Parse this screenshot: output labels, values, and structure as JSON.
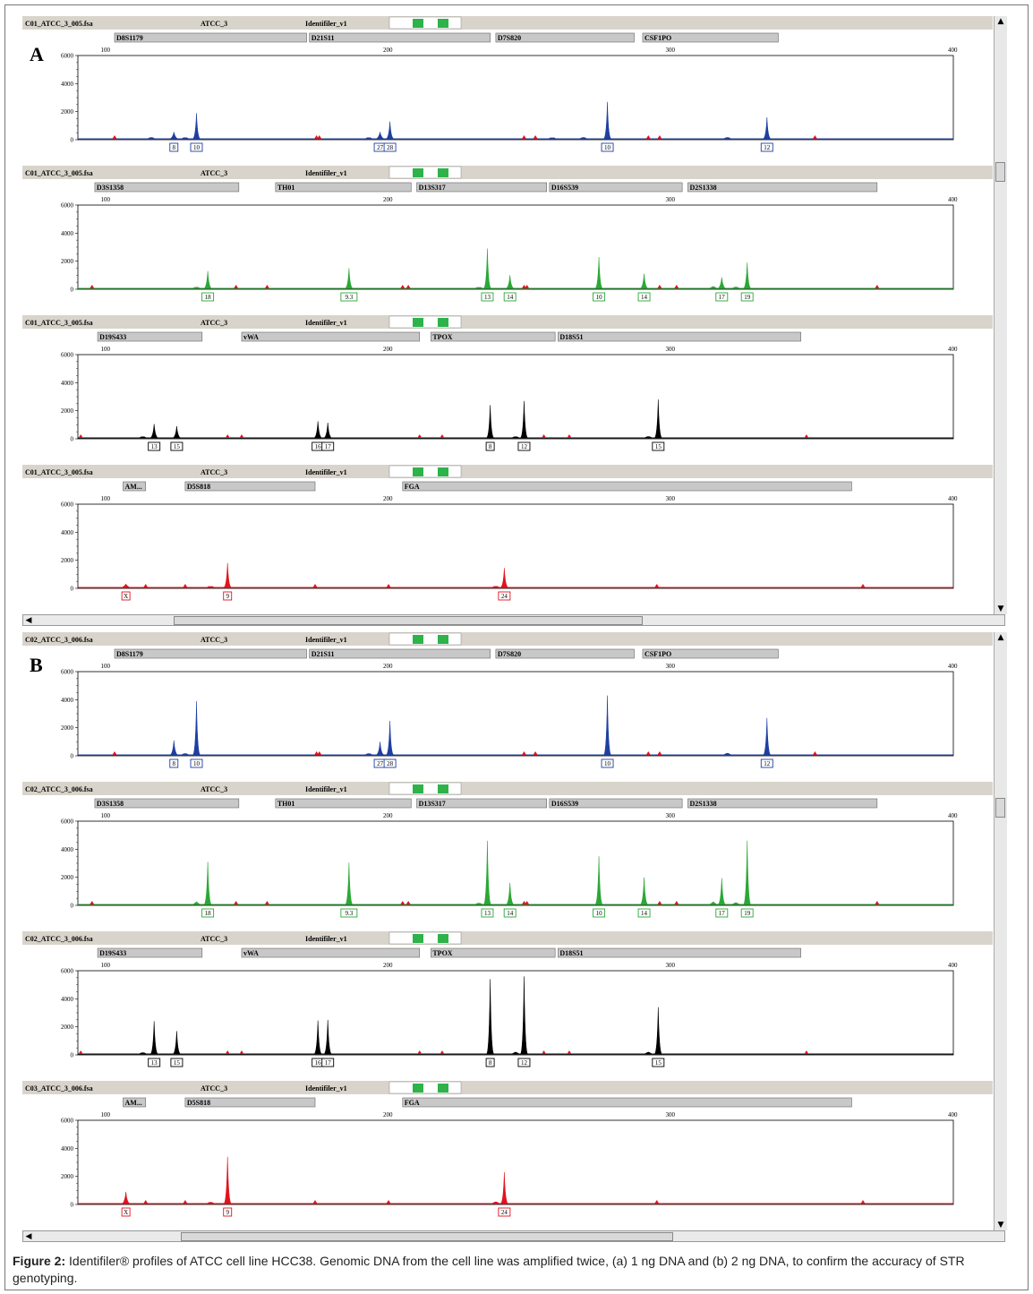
{
  "figure": {
    "caption_label": "Figure 2:",
    "caption_text": "Identifiler® profiles of ATCC cell line HCC38. Genomic DNA from the cell line was amplified twice, (a) 1 ng DNA and (b) 2 ng DNA, to confirm the accuracy of STR genotyping."
  },
  "colors": {
    "blue": "#1f3fa0",
    "green": "#2aa835",
    "black": "#000000",
    "red": "#e0141e",
    "header_bg": "#d9d4cb",
    "marker_bg": "#c8c8c8",
    "swatch": "#2db34a"
  },
  "chart_data": [
    {
      "panel": "A",
      "type": "line",
      "x_ticks": [
        100,
        200,
        300,
        400
      ],
      "x_range": [
        90,
        400
      ],
      "channels": [
        {
          "file": "C01_ATCC_3_005.fsa",
          "sample": "ATCC_3",
          "panel_name": "Identifiler_v1",
          "color": "blue",
          "y_ticks": [
            0,
            2000,
            4000,
            6000
          ],
          "ylim": [
            0,
            6000
          ],
          "markers": [
            {
              "name": "D8S1179",
              "start": 103,
              "end": 171
            },
            {
              "name": "D21S11",
              "start": 172,
              "end": 236
            },
            {
              "name": "D7S820",
              "start": 238,
              "end": 287
            },
            {
              "name": "CSF1PO",
              "start": 290,
              "end": 338
            }
          ],
          "peaks": [
            {
              "x": 124,
              "h": 550,
              "label": "8"
            },
            {
              "x": 132,
              "h": 1900,
              "label": "10"
            },
            {
              "x": 197,
              "h": 550,
              "label": "27"
            },
            {
              "x": 200.5,
              "h": 1300,
              "label": "28"
            },
            {
              "x": 277.5,
              "h": 2700,
              "label": "10"
            },
            {
              "x": 334,
              "h": 1600,
              "label": "12"
            },
            {
              "x": 116,
              "h": 150
            },
            {
              "x": 128,
              "h": 120
            },
            {
              "x": 193,
              "h": 120
            },
            {
              "x": 258,
              "h": 100
            },
            {
              "x": 269,
              "h": 150
            },
            {
              "x": 320,
              "h": 150
            }
          ],
          "off_ladder": [
            103,
            174.5,
            175.5,
            248,
            252,
            292,
            296,
            351
          ]
        },
        {
          "file": "C01_ATCC_3_005.fsa",
          "sample": "ATCC_3",
          "panel_name": "Identifiler_v1",
          "color": "green",
          "y_ticks": [
            0,
            2000,
            4000,
            6000
          ],
          "ylim": [
            0,
            6000
          ],
          "markers": [
            {
              "name": "D3S1358",
              "start": 96,
              "end": 147
            },
            {
              "name": "TH01",
              "start": 160,
              "end": 208
            },
            {
              "name": "D13S317",
              "start": 210,
              "end": 256
            },
            {
              "name": "D16S539",
              "start": 257,
              "end": 304
            },
            {
              "name": "D2S1338",
              "start": 306,
              "end": 373
            }
          ],
          "peaks": [
            {
              "x": 136,
              "h": 1300,
              "label": "18"
            },
            {
              "x": 186,
              "h": 1500,
              "label": "9.3"
            },
            {
              "x": 235,
              "h": 2900,
              "label": "13"
            },
            {
              "x": 243,
              "h": 1000,
              "label": "14"
            },
            {
              "x": 274.5,
              "h": 2300,
              "label": "10"
            },
            {
              "x": 290.5,
              "h": 1100,
              "label": "14"
            },
            {
              "x": 318,
              "h": 850,
              "label": "17"
            },
            {
              "x": 327,
              "h": 1900,
              "label": "19"
            },
            {
              "x": 132,
              "h": 120
            },
            {
              "x": 232,
              "h": 100
            },
            {
              "x": 315,
              "h": 200
            },
            {
              "x": 323,
              "h": 150
            }
          ],
          "off_ladder": [
            95,
            146,
            157,
            205,
            207,
            248,
            249,
            296,
            302,
            373
          ]
        },
        {
          "file": "C01_ATCC_3_005.fsa",
          "sample": "ATCC_3",
          "panel_name": "Identifiler_v1",
          "color": "black",
          "y_ticks": [
            0,
            2000,
            4000,
            6000
          ],
          "ylim": [
            0,
            6000
          ],
          "markers": [
            {
              "name": "D19S433",
              "start": 97,
              "end": 134
            },
            {
              "name": "vWA",
              "start": 148,
              "end": 211
            },
            {
              "name": "TPOX",
              "start": 215,
              "end": 259
            },
            {
              "name": "D18S51",
              "start": 260,
              "end": 346
            }
          ],
          "peaks": [
            {
              "x": 117,
              "h": 1050,
              "label": "13"
            },
            {
              "x": 125,
              "h": 900,
              "label": "15"
            },
            {
              "x": 175,
              "h": 1250,
              "label": "16"
            },
            {
              "x": 178.5,
              "h": 1150,
              "label": "17"
            },
            {
              "x": 236,
              "h": 2400,
              "label": "8"
            },
            {
              "x": 248,
              "h": 2700,
              "label": "12"
            },
            {
              "x": 295.5,
              "h": 2800,
              "label": "15"
            },
            {
              "x": 113,
              "h": 120
            },
            {
              "x": 245,
              "h": 120
            },
            {
              "x": 292,
              "h": 150
            }
          ],
          "off_ladder": [
            91,
            143,
            148,
            211,
            219,
            255,
            264,
            348
          ]
        },
        {
          "file": "C01_ATCC_3_005.fsa",
          "sample": "ATCC_3",
          "panel_name": "Identifiler_v1",
          "color": "red",
          "y_ticks": [
            0,
            2000,
            4000,
            6000
          ],
          "ylim": [
            0,
            6000
          ],
          "markers": [
            {
              "name": "AM...",
              "start": 106,
              "end": 114
            },
            {
              "name": "D5S818",
              "start": 128,
              "end": 174
            },
            {
              "name": "FGA",
              "start": 205,
              "end": 364
            }
          ],
          "peaks": [
            {
              "x": 107,
              "h": 300,
              "label": "X"
            },
            {
              "x": 143,
              "h": 1800,
              "label": "9"
            },
            {
              "x": 241,
              "h": 1450,
              "label": "24"
            },
            {
              "x": 137,
              "h": 100
            },
            {
              "x": 238,
              "h": 120
            }
          ],
          "off_ladder": [
            114,
            128,
            174,
            200,
            295,
            368
          ]
        }
      ]
    },
    {
      "panel": "B",
      "type": "line",
      "x_ticks": [
        100,
        200,
        300,
        400
      ],
      "x_range": [
        90,
        400
      ],
      "channels": [
        {
          "file": "C02_ATCC_3_006.fsa",
          "sample": "ATCC_3",
          "panel_name": "Identifiler_v1",
          "color": "blue",
          "y_ticks": [
            0,
            2000,
            4000,
            6000
          ],
          "ylim": [
            0,
            6000
          ],
          "markers": [
            {
              "name": "D8S1179",
              "start": 103,
              "end": 171
            },
            {
              "name": "D21S11",
              "start": 172,
              "end": 236
            },
            {
              "name": "D7S820",
              "start": 238,
              "end": 287
            },
            {
              "name": "CSF1PO",
              "start": 290,
              "end": 338
            }
          ],
          "peaks": [
            {
              "x": 124,
              "h": 1100,
              "label": "8"
            },
            {
              "x": 132,
              "h": 3900,
              "label": "10"
            },
            {
              "x": 197,
              "h": 1000,
              "label": "27"
            },
            {
              "x": 200.5,
              "h": 2500,
              "label": "28"
            },
            {
              "x": 277.5,
              "h": 4300,
              "label": "10"
            },
            {
              "x": 334,
              "h": 2700,
              "label": "12"
            },
            {
              "x": 128,
              "h": 150
            },
            {
              "x": 193,
              "h": 150
            },
            {
              "x": 320,
              "h": 180
            }
          ],
          "off_ladder": [
            103,
            174.5,
            175.5,
            248,
            252,
            292,
            296,
            351
          ]
        },
        {
          "file": "C02_ATCC_3_006.fsa",
          "sample": "ATCC_3",
          "panel_name": "Identifiler_v1",
          "color": "green",
          "y_ticks": [
            0,
            2000,
            4000,
            6000
          ],
          "ylim": [
            0,
            6000
          ],
          "markers": [
            {
              "name": "D3S1358",
              "start": 96,
              "end": 147
            },
            {
              "name": "TH01",
              "start": 160,
              "end": 208
            },
            {
              "name": "D13S317",
              "start": 210,
              "end": 256
            },
            {
              "name": "D16S539",
              "start": 257,
              "end": 304
            },
            {
              "name": "D2S1338",
              "start": 306,
              "end": 373
            }
          ],
          "peaks": [
            {
              "x": 136,
              "h": 3100,
              "label": "18"
            },
            {
              "x": 186,
              "h": 3050,
              "label": "9.3"
            },
            {
              "x": 235,
              "h": 4600,
              "label": "13"
            },
            {
              "x": 243,
              "h": 1600,
              "label": "14"
            },
            {
              "x": 274.5,
              "h": 3500,
              "label": "10"
            },
            {
              "x": 290.5,
              "h": 2000,
              "label": "14"
            },
            {
              "x": 318,
              "h": 1950,
              "label": "17"
            },
            {
              "x": 327,
              "h": 4600,
              "label": "19"
            },
            {
              "x": 132,
              "h": 250
            },
            {
              "x": 232,
              "h": 150
            },
            {
              "x": 315,
              "h": 250
            },
            {
              "x": 323,
              "h": 200
            }
          ],
          "off_ladder": [
            95,
            146,
            157,
            205,
            207,
            248,
            249,
            296,
            302,
            373
          ]
        },
        {
          "file": "C02_ATCC_3_006.fsa",
          "sample": "ATCC_3",
          "panel_name": "Identifiler_v1",
          "color": "black",
          "y_ticks": [
            0,
            2000,
            4000,
            6000
          ],
          "ylim": [
            0,
            6000
          ],
          "markers": [
            {
              "name": "D19S433",
              "start": 97,
              "end": 134
            },
            {
              "name": "vWA",
              "start": 148,
              "end": 211
            },
            {
              "name": "TPOX",
              "start": 215,
              "end": 259
            },
            {
              "name": "D18S51",
              "start": 260,
              "end": 346
            }
          ],
          "peaks": [
            {
              "x": 117,
              "h": 2400,
              "label": "13"
            },
            {
              "x": 125,
              "h": 1700,
              "label": "15"
            },
            {
              "x": 175,
              "h": 2450,
              "label": "16"
            },
            {
              "x": 178.5,
              "h": 2500,
              "label": "17"
            },
            {
              "x": 236,
              "h": 5400,
              "label": "8"
            },
            {
              "x": 248,
              "h": 5600,
              "label": "12"
            },
            {
              "x": 295.5,
              "h": 3400,
              "label": "15"
            },
            {
              "x": 113,
              "h": 150
            },
            {
              "x": 245,
              "h": 200
            },
            {
              "x": 292,
              "h": 200
            }
          ],
          "off_ladder": [
            91,
            143,
            148,
            211,
            219,
            255,
            264,
            348
          ]
        },
        {
          "file": "C03_ATCC_3_006.fsa",
          "sample": "ATCC_3",
          "panel_name": "Identifiler_v1",
          "color": "red",
          "y_ticks": [
            0,
            2000,
            4000,
            6000
          ],
          "ylim": [
            0,
            6000
          ],
          "markers": [
            {
              "name": "AM...",
              "start": 106,
              "end": 114
            },
            {
              "name": "D5S818",
              "start": 128,
              "end": 174
            },
            {
              "name": "FGA",
              "start": 205,
              "end": 364
            }
          ],
          "peaks": [
            {
              "x": 107,
              "h": 900,
              "label": "X"
            },
            {
              "x": 143,
              "h": 3400,
              "label": "9"
            },
            {
              "x": 241,
              "h": 2300,
              "label": "24"
            },
            {
              "x": 137,
              "h": 150
            },
            {
              "x": 238,
              "h": 180
            }
          ],
          "off_ladder": [
            114,
            128,
            174,
            200,
            295,
            368
          ]
        }
      ]
    }
  ],
  "panel_labels": {
    "a": "A",
    "b": "B"
  },
  "scroll_arrows": {
    "up": "▲",
    "down": "▼",
    "left": "◀"
  }
}
